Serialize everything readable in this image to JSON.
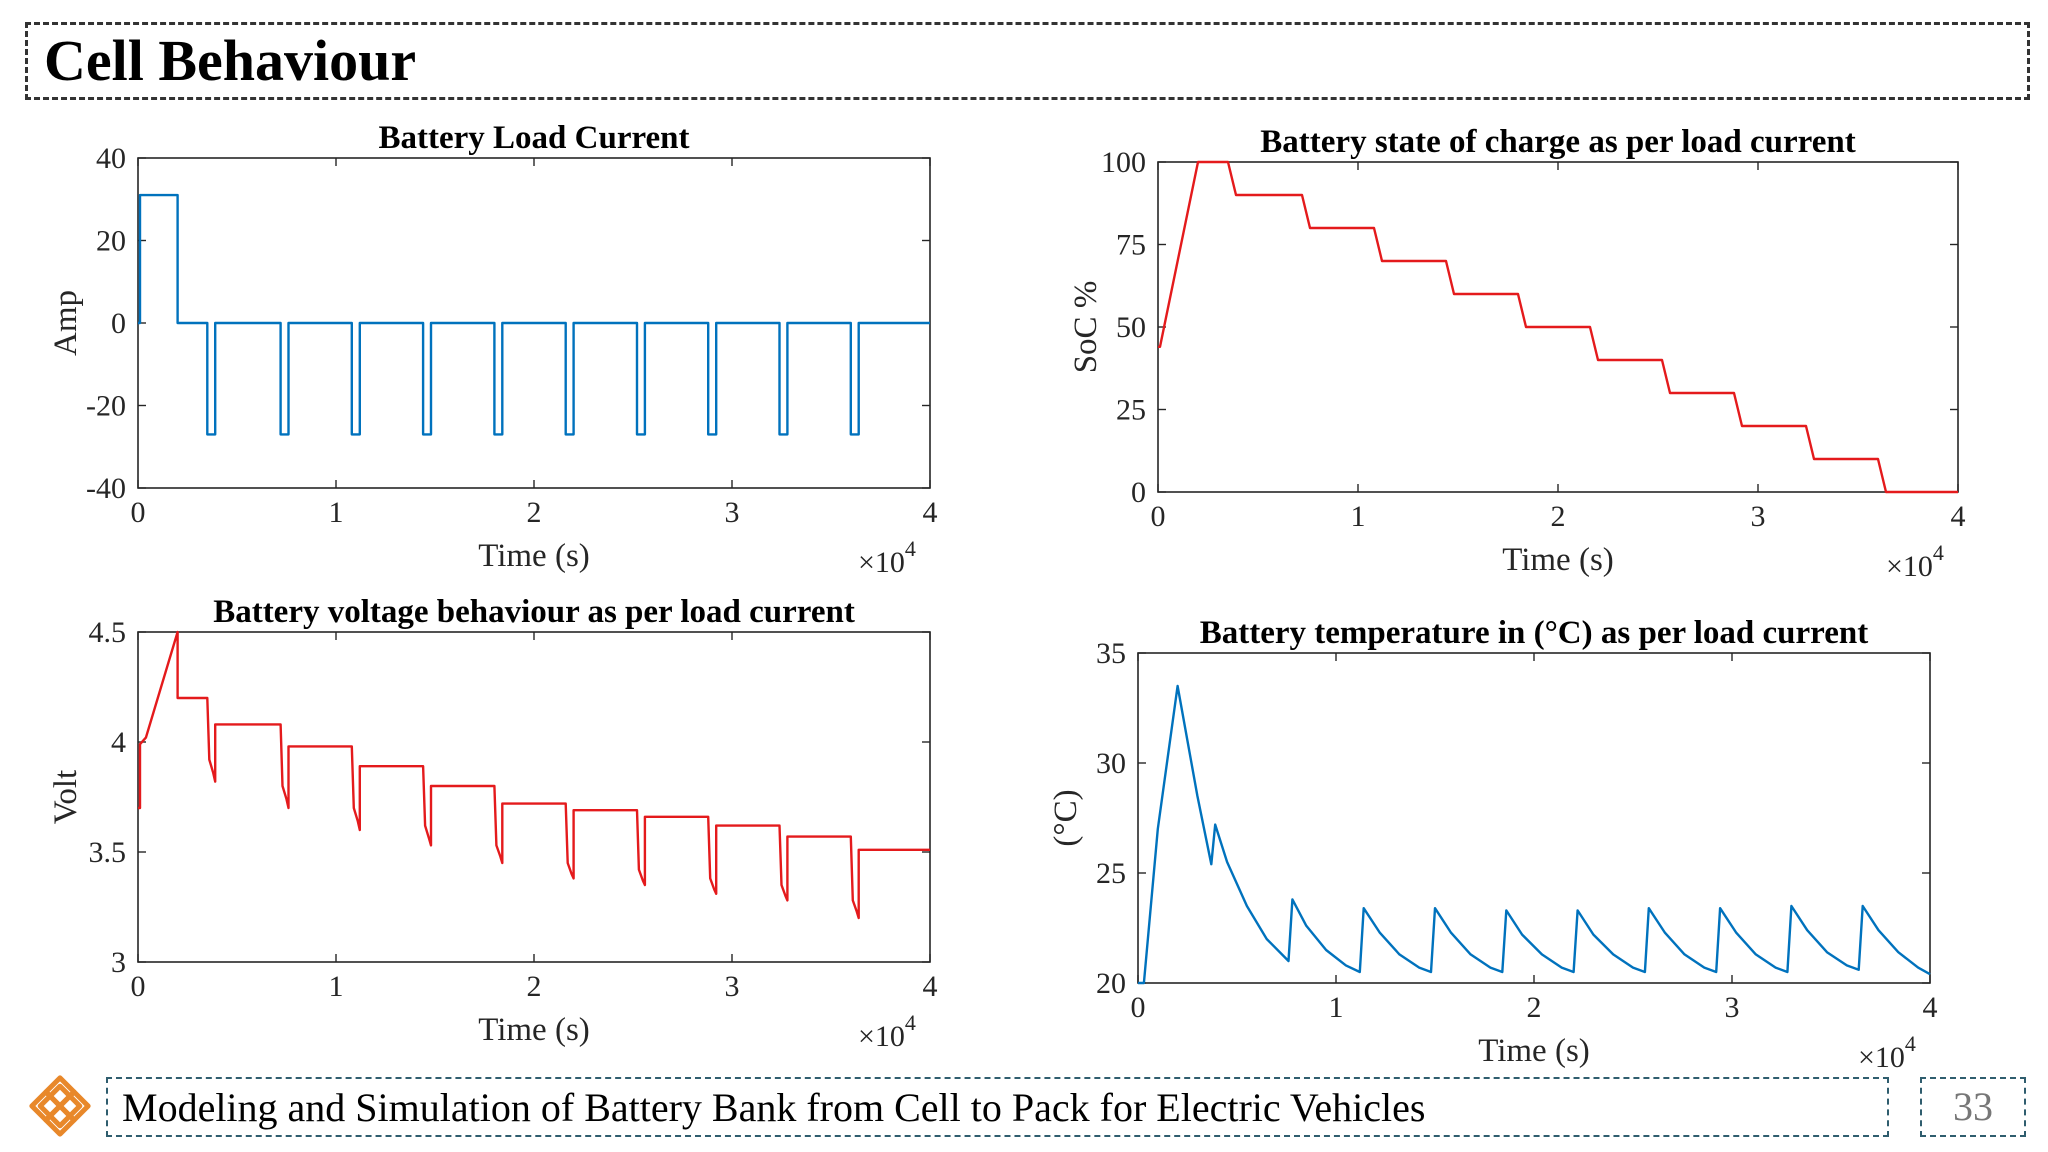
{
  "slide": {
    "title": "Cell Behaviour",
    "footer": "Modeling and Simulation of Battery Bank from Cell to Pack for Electric Vehicles",
    "page_number": "33",
    "logo_icon": "knot-logo-icon",
    "accent_color": "#e8882a"
  },
  "chart_data": [
    {
      "type": "line",
      "title": "Battery Load Current",
      "xlabel": "Time (s)",
      "ylabel": "Amp",
      "x_multiplier_base": "×10",
      "x_multiplier_exp": "4",
      "xlim": [
        0,
        4
      ],
      "ylim": [
        -40,
        40
      ],
      "xticks": [
        0,
        1,
        2,
        3,
        4
      ],
      "yticks": [
        -40,
        -20,
        0,
        20,
        40
      ],
      "line_color": "#0072bd",
      "grid": false,
      "series": [
        {
          "x": [
            0,
            0.01,
            0.01,
            0.2,
            0.2,
            0.35,
            0.35,
            0.39,
            0.39,
            0.72,
            0.72,
            0.76,
            0.76,
            1.08,
            1.08,
            1.12,
            1.12,
            1.44,
            1.44,
            1.48,
            1.48,
            1.8,
            1.8,
            1.84,
            1.84,
            2.16,
            2.16,
            2.2,
            2.2,
            2.52,
            2.52,
            2.56,
            2.56,
            2.88,
            2.88,
            2.92,
            2.92,
            3.24,
            3.24,
            3.28,
            3.28,
            3.6,
            3.6,
            3.64,
            3.64,
            4.0
          ],
          "y": [
            0,
            0,
            31,
            31,
            0,
            0,
            -27,
            -27,
            0,
            0,
            -27,
            -27,
            0,
            0,
            -27,
            -27,
            0,
            0,
            -27,
            -27,
            0,
            0,
            -27,
            -27,
            0,
            0,
            -27,
            -27,
            0,
            0,
            -27,
            -27,
            0,
            0,
            -27,
            -27,
            0,
            0,
            -27,
            -27,
            0,
            0,
            -27,
            -27,
            0,
            0
          ]
        }
      ]
    },
    {
      "type": "line",
      "title": "Battery state of charge as per load current",
      "xlabel": "Time (s)",
      "ylabel": "SoC %",
      "x_multiplier_base": "×10",
      "x_multiplier_exp": "4",
      "xlim": [
        0,
        4
      ],
      "ylim": [
        0,
        100
      ],
      "xticks": [
        0,
        1,
        2,
        3,
        4
      ],
      "yticks": [
        0,
        25,
        50,
        75,
        100
      ],
      "line_color": "#e41a1c",
      "grid": false,
      "series": [
        {
          "x": [
            0,
            0.01,
            0.2,
            0.35,
            0.39,
            0.72,
            0.76,
            1.08,
            1.12,
            1.44,
            1.48,
            1.8,
            1.84,
            2.16,
            2.2,
            2.52,
            2.56,
            2.88,
            2.92,
            3.24,
            3.28,
            3.6,
            3.64,
            4.0
          ],
          "y": [
            44,
            44,
            100,
            100,
            90,
            90,
            80,
            80,
            70,
            70,
            60,
            60,
            50,
            50,
            40,
            40,
            30,
            30,
            20,
            20,
            10,
            10,
            0,
            0
          ]
        }
      ]
    },
    {
      "type": "line",
      "title": "Battery voltage behaviour as per load current",
      "xlabel": "Time (s)",
      "ylabel": "Volt",
      "x_multiplier_base": "×10",
      "x_multiplier_exp": "4",
      "xlim": [
        0,
        4
      ],
      "ylim": [
        3,
        4.5
      ],
      "xticks": [
        0,
        1,
        2,
        3,
        4
      ],
      "yticks": [
        3,
        3.5,
        4,
        4.5
      ],
      "ytick_labels": [
        "3",
        "3.5",
        "4",
        "4.5"
      ],
      "line_color": "#e41a1c",
      "grid": false,
      "series": [
        {
          "x": [
            0,
            0.01,
            0.01,
            0.04,
            0.2,
            0.2,
            0.35,
            0.36,
            0.38,
            0.39,
            0.39,
            0.72,
            0.73,
            0.75,
            0.76,
            0.76,
            1.08,
            1.09,
            1.11,
            1.12,
            1.12,
            1.44,
            1.45,
            1.47,
            1.48,
            1.48,
            1.8,
            1.81,
            1.83,
            1.84,
            1.84,
            2.16,
            2.17,
            2.19,
            2.2,
            2.2,
            2.52,
            2.53,
            2.55,
            2.56,
            2.56,
            2.88,
            2.89,
            2.91,
            2.92,
            2.92,
            3.24,
            3.25,
            3.27,
            3.28,
            3.28,
            3.6,
            3.61,
            3.63,
            3.64,
            3.64,
            4.0
          ],
          "y": [
            3.7,
            3.7,
            3.99,
            4.02,
            4.5,
            4.2,
            4.2,
            3.92,
            3.86,
            3.82,
            4.08,
            4.08,
            3.8,
            3.74,
            3.7,
            3.98,
            3.98,
            3.7,
            3.64,
            3.6,
            3.89,
            3.89,
            3.62,
            3.56,
            3.53,
            3.8,
            3.8,
            3.53,
            3.48,
            3.45,
            3.72,
            3.72,
            3.45,
            3.4,
            3.38,
            3.69,
            3.69,
            3.42,
            3.37,
            3.35,
            3.66,
            3.66,
            3.38,
            3.33,
            3.31,
            3.62,
            3.62,
            3.35,
            3.3,
            3.28,
            3.57,
            3.57,
            3.28,
            3.23,
            3.2,
            3.51,
            3.51
          ]
        }
      ]
    },
    {
      "type": "line",
      "title": "Battery temperature in  (°C) as per load current",
      "xlabel": "Time (s)",
      "ylabel": "(°C)",
      "x_multiplier_base": "×10",
      "x_multiplier_exp": "4",
      "xlim": [
        0,
        4
      ],
      "ylim": [
        20,
        35
      ],
      "xticks": [
        0,
        1,
        2,
        3,
        4
      ],
      "yticks": [
        20,
        25,
        30,
        35
      ],
      "line_color": "#0072bd",
      "grid": false,
      "series": [
        {
          "x": [
            0,
            0.03,
            0.1,
            0.2,
            0.25,
            0.3,
            0.37,
            0.39,
            0.45,
            0.55,
            0.65,
            0.76,
            0.78,
            0.85,
            0.95,
            1.05,
            1.12,
            1.14,
            1.22,
            1.32,
            1.42,
            1.48,
            1.5,
            1.58,
            1.68,
            1.78,
            1.84,
            1.86,
            1.94,
            2.04,
            2.14,
            2.2,
            2.22,
            2.3,
            2.4,
            2.5,
            2.56,
            2.58,
            2.66,
            2.76,
            2.86,
            2.92,
            2.94,
            3.02,
            3.12,
            3.22,
            3.28,
            3.3,
            3.38,
            3.48,
            3.58,
            3.64,
            3.66,
            3.74,
            3.84,
            3.94,
            4.0
          ],
          "y": [
            20,
            20,
            27,
            33.5,
            31,
            28.5,
            25.4,
            27.2,
            25.5,
            23.5,
            22.0,
            21.0,
            23.8,
            22.6,
            21.5,
            20.8,
            20.5,
            23.4,
            22.3,
            21.3,
            20.7,
            20.5,
            23.4,
            22.3,
            21.3,
            20.7,
            20.5,
            23.3,
            22.2,
            21.3,
            20.7,
            20.5,
            23.3,
            22.2,
            21.3,
            20.7,
            20.5,
            23.4,
            22.3,
            21.3,
            20.7,
            20.5,
            23.4,
            22.3,
            21.3,
            20.7,
            20.5,
            23.5,
            22.4,
            21.4,
            20.8,
            20.6,
            23.5,
            22.4,
            21.4,
            20.7,
            20.4
          ]
        }
      ]
    }
  ]
}
